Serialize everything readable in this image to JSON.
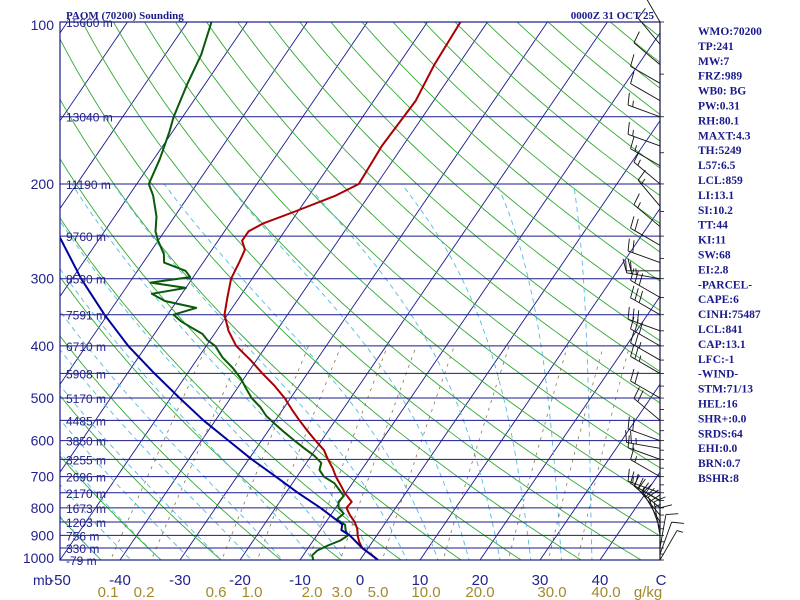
{
  "header": {
    "station": "PAOM (70200) Sounding",
    "time": "0000Z 31 OCT 25"
  },
  "indices": [
    "WMO:70200",
    "TP:241",
    "MW:7",
    "FRZ:989",
    "WB0: BG",
    "PW:0.31",
    "RH:80.1",
    "MAXT:4.3",
    "TH:5249",
    "L57:6.5",
    "LCL:859",
    "LI:13.1",
    "SI:10.2",
    "TT:44",
    "KI:11",
    "SW:68",
    "EI:2.8",
    "-PARCEL-",
    "CAPE:6",
    "CINH:75487",
    "LCL:841",
    "CAP:13.1",
    "LFC:-1",
    "-WIND-",
    "STM:71/13",
    "HEL:16",
    "SHR+:0.0",
    "SRDS:64",
    "EHI:0.0",
    "BRN:0.7",
    "BSHR:8"
  ],
  "chart_data": {
    "type": "line",
    "title": "PAOM (70200) Sounding",
    "subtitle": "0000Z 31 OCT 25",
    "x_axis_unit": "C",
    "y_axis_unit": "mb",
    "xlim": [
      -50,
      50
    ],
    "ylim": [
      1000,
      100
    ],
    "pressure_ticks": [
      100,
      200,
      300,
      400,
      500,
      600,
      700,
      800,
      900,
      1000
    ],
    "temperature_ticks": [
      -50,
      -40,
      -30,
      -20,
      -10,
      0,
      10,
      20,
      30,
      40
    ],
    "mixing_ratio_labels": [
      {
        "label": "0.1",
        "at_temp": -42
      },
      {
        "label": "0.2",
        "at_temp": -36
      },
      {
        "label": "0.6",
        "at_temp": -24
      },
      {
        "label": "1.0",
        "at_temp": -18
      },
      {
        "label": "2.0",
        "at_temp": -8
      },
      {
        "label": "3.0",
        "at_temp": -3
      },
      {
        "label": "5.0",
        "at_temp": 3
      },
      {
        "label": "10.0",
        "at_temp": 11
      },
      {
        "label": "20.0",
        "at_temp": 20
      },
      {
        "label": "30.0",
        "at_temp": 32
      },
      {
        "label": "40.0",
        "at_temp": 41
      },
      {
        "label": "g/kg",
        "at_temp": 48
      }
    ],
    "height_levels": [
      {
        "p": 100,
        "label": "15660 m"
      },
      {
        "p": 150,
        "label": "13040 m"
      },
      {
        "p": 200,
        "label": "11190 m"
      },
      {
        "p": 250,
        "label": "9760 m"
      },
      {
        "p": 300,
        "label": "8590 m"
      },
      {
        "p": 350,
        "label": "7591 m"
      },
      {
        "p": 400,
        "label": "6710 m"
      },
      {
        "p": 450,
        "label": "5908 m"
      },
      {
        "p": 500,
        "label": "5170 m"
      },
      {
        "p": 550,
        "label": "4485 m"
      },
      {
        "p": 600,
        "label": "3850 m"
      },
      {
        "p": 650,
        "label": "3255 m"
      },
      {
        "p": 700,
        "label": "2696 m"
      },
      {
        "p": 750,
        "label": "2170 m"
      },
      {
        "p": 800,
        "label": "1673 m"
      },
      {
        "p": 850,
        "label": "1203 m"
      },
      {
        "p": 900,
        "label": "756 m"
      },
      {
        "p": 950,
        "label": "330 m"
      },
      {
        "p": 1000,
        "label": "-79 m"
      }
    ],
    "series": [
      {
        "name": "Temperature",
        "color": "#aa0000",
        "points": [
          {
            "p": 1000,
            "t": 3.0
          },
          {
            "p": 980,
            "t": 1.5
          },
          {
            "p": 950,
            "t": -1.0
          },
          {
            "p": 925,
            "t": -2.2
          },
          {
            "p": 900,
            "t": -3.2
          },
          {
            "p": 875,
            "t": -4.0
          },
          {
            "p": 850,
            "t": -5.2
          },
          {
            "p": 825,
            "t": -6.8
          },
          {
            "p": 800,
            "t": -8.2
          },
          {
            "p": 780,
            "t": -8.0
          },
          {
            "p": 750,
            "t": -10.2
          },
          {
            "p": 725,
            "t": -11.8
          },
          {
            "p": 700,
            "t": -13.5
          },
          {
            "p": 675,
            "t": -15.0
          },
          {
            "p": 650,
            "t": -16.8
          },
          {
            "p": 625,
            "t": -18.5
          },
          {
            "p": 600,
            "t": -21.0
          },
          {
            "p": 575,
            "t": -23.5
          },
          {
            "p": 550,
            "t": -26.0
          },
          {
            "p": 525,
            "t": -28.5
          },
          {
            "p": 500,
            "t": -31.0
          },
          {
            "p": 475,
            "t": -34.0
          },
          {
            "p": 450,
            "t": -37.5
          },
          {
            "p": 425,
            "t": -41.0
          },
          {
            "p": 400,
            "t": -45.0
          },
          {
            "p": 375,
            "t": -48.0
          },
          {
            "p": 350,
            "t": -50.5
          },
          {
            "p": 325,
            "t": -52.0
          },
          {
            "p": 300,
            "t": -53.5
          },
          {
            "p": 280,
            "t": -54.0
          },
          {
            "p": 265,
            "t": -54.5
          },
          {
            "p": 255,
            "t": -56.0
          },
          {
            "p": 245,
            "t": -56.0
          },
          {
            "p": 237,
            "t": -54.5
          },
          {
            "p": 225,
            "t": -50.5
          },
          {
            "p": 210,
            "t": -45.5
          },
          {
            "p": 200,
            "t": -43.0
          },
          {
            "p": 170,
            "t": -43.5
          },
          {
            "p": 140,
            "t": -43.0
          },
          {
            "p": 120,
            "t": -44.0
          },
          {
            "p": 100,
            "t": -44.5
          }
        ]
      },
      {
        "name": "Dewpoint",
        "color": "#0a5a0a",
        "points": [
          {
            "p": 1000,
            "t": -7.8
          },
          {
            "p": 980,
            "t": -8.5
          },
          {
            "p": 960,
            "t": -8.2
          },
          {
            "p": 940,
            "t": -7.0
          },
          {
            "p": 920,
            "t": -5.5
          },
          {
            "p": 900,
            "t": -4.8
          },
          {
            "p": 880,
            "t": -5.8
          },
          {
            "p": 860,
            "t": -6.5
          },
          {
            "p": 840,
            "t": -8.5
          },
          {
            "p": 820,
            "t": -8.0
          },
          {
            "p": 800,
            "t": -9.5
          },
          {
            "p": 780,
            "t": -10.2
          },
          {
            "p": 760,
            "t": -10.0
          },
          {
            "p": 740,
            "t": -11.5
          },
          {
            "p": 720,
            "t": -13.0
          },
          {
            "p": 700,
            "t": -15.5
          },
          {
            "p": 680,
            "t": -17.0
          },
          {
            "p": 660,
            "t": -17.5
          },
          {
            "p": 640,
            "t": -19.5
          },
          {
            "p": 620,
            "t": -22.0
          },
          {
            "p": 600,
            "t": -24.5
          },
          {
            "p": 580,
            "t": -27.0
          },
          {
            "p": 560,
            "t": -29.5
          },
          {
            "p": 540,
            "t": -32.0
          },
          {
            "p": 520,
            "t": -34.0
          },
          {
            "p": 500,
            "t": -36.5
          },
          {
            "p": 480,
            "t": -38.5
          },
          {
            "p": 460,
            "t": -40.5
          },
          {
            "p": 440,
            "t": -43.0
          },
          {
            "p": 420,
            "t": -46.0
          },
          {
            "p": 400,
            "t": -48.5
          },
          {
            "p": 390,
            "t": -50.5
          },
          {
            "p": 380,
            "t": -52.0
          },
          {
            "p": 370,
            "t": -54.5
          },
          {
            "p": 360,
            "t": -57.0
          },
          {
            "p": 350,
            "t": -59.0
          },
          {
            "p": 340,
            "t": -56.0
          },
          {
            "p": 330,
            "t": -62.0
          },
          {
            "p": 320,
            "t": -65.0
          },
          {
            "p": 312,
            "t": -60.0
          },
          {
            "p": 305,
            "t": -66.5
          },
          {
            "p": 298,
            "t": -60.5
          },
          {
            "p": 290,
            "t": -62.0
          },
          {
            "p": 280,
            "t": -66.5
          },
          {
            "p": 270,
            "t": -67.5
          },
          {
            "p": 255,
            "t": -70.0
          },
          {
            "p": 245,
            "t": -71.5
          },
          {
            "p": 230,
            "t": -73.0
          },
          {
            "p": 210,
            "t": -76.0
          },
          {
            "p": 200,
            "t": -78.0
          },
          {
            "p": 180,
            "t": -79.0
          },
          {
            "p": 160,
            "t": -80.5
          },
          {
            "p": 150,
            "t": -81.5
          },
          {
            "p": 130,
            "t": -83.0
          },
          {
            "p": 115,
            "t": -84.0
          },
          {
            "p": 100,
            "t": -86.0
          }
        ]
      },
      {
        "name": "Parcel",
        "color": "#0000a0",
        "points": [
          {
            "p": 1000,
            "t": 3.0
          },
          {
            "p": 950,
            "t": -1.0
          },
          {
            "p": 900,
            "t": -4.5
          },
          {
            "p": 880,
            "t": -6.5
          },
          {
            "p": 859,
            "t": -7.0
          },
          {
            "p": 850,
            "t": -7.8
          },
          {
            "p": 800,
            "t": -12.5
          },
          {
            "p": 750,
            "t": -18.0
          },
          {
            "p": 700,
            "t": -23.5
          },
          {
            "p": 650,
            "t": -29.5
          },
          {
            "p": 600,
            "t": -35.5
          },
          {
            "p": 550,
            "t": -42.0
          },
          {
            "p": 500,
            "t": -48.5
          },
          {
            "p": 450,
            "t": -55.5
          },
          {
            "p": 400,
            "t": -63.0
          },
          {
            "p": 350,
            "t": -70.5
          },
          {
            "p": 300,
            "t": -78.5
          },
          {
            "p": 250,
            "t": -87.0
          },
          {
            "p": 200,
            "t": -96.0
          },
          {
            "p": 150,
            "t": -106.0
          },
          {
            "p": 125,
            "t": -111.5
          },
          {
            "p": 100,
            "t": -117.5
          }
        ]
      }
    ],
    "wind_barbs": [
      {
        "p": 1000,
        "dir": 30,
        "spd": 5
      },
      {
        "p": 975,
        "dir": 20,
        "spd": 10
      },
      {
        "p": 950,
        "dir": 10,
        "spd": 10
      },
      {
        "p": 925,
        "dir": 0,
        "spd": 10
      },
      {
        "p": 900,
        "dir": 350,
        "spd": 15
      },
      {
        "p": 875,
        "dir": 340,
        "spd": 20
      },
      {
        "p": 850,
        "dir": 330,
        "spd": 20
      },
      {
        "p": 825,
        "dir": 320,
        "spd": 20
      },
      {
        "p": 800,
        "dir": 310,
        "spd": 25
      },
      {
        "p": 775,
        "dir": 300,
        "spd": 20
      },
      {
        "p": 750,
        "dir": 290,
        "spd": 15
      },
      {
        "p": 700,
        "dir": 300,
        "spd": 15
      },
      {
        "p": 650,
        "dir": 290,
        "spd": 15
      },
      {
        "p": 620,
        "dir": 280,
        "spd": 25
      },
      {
        "p": 600,
        "dir": 290,
        "spd": 20
      },
      {
        "p": 550,
        "dir": 310,
        "spd": 20
      },
      {
        "p": 500,
        "dir": 300,
        "spd": 20
      },
      {
        "p": 450,
        "dir": 300,
        "spd": 25
      },
      {
        "p": 425,
        "dir": 300,
        "spd": 25
      },
      {
        "p": 400,
        "dir": 300,
        "spd": 30
      },
      {
        "p": 375,
        "dir": 290,
        "spd": 30
      },
      {
        "p": 350,
        "dir": 300,
        "spd": 30
      },
      {
        "p": 325,
        "dir": 300,
        "spd": 30
      },
      {
        "p": 300,
        "dir": 280,
        "spd": 25
      },
      {
        "p": 290,
        "dir": 270,
        "spd": 20
      },
      {
        "p": 280,
        "dir": 290,
        "spd": 20
      },
      {
        "p": 260,
        "dir": 300,
        "spd": 20
      },
      {
        "p": 240,
        "dir": 310,
        "spd": 15
      },
      {
        "p": 220,
        "dir": 320,
        "spd": 15
      },
      {
        "p": 200,
        "dir": 310,
        "spd": 15
      },
      {
        "p": 185,
        "dir": 300,
        "spd": 15
      },
      {
        "p": 170,
        "dir": 290,
        "spd": 15
      },
      {
        "p": 150,
        "dir": 290,
        "spd": 15
      },
      {
        "p": 140,
        "dir": 300,
        "spd": 10
      },
      {
        "p": 130,
        "dir": 300,
        "spd": 10
      },
      {
        "p": 120,
        "dir": 310,
        "spd": 10
      },
      {
        "p": 110,
        "dir": 320,
        "spd": 10
      },
      {
        "p": 100,
        "dir": 330,
        "spd": 10
      }
    ],
    "colors": {
      "isobar": "#1a1a8c",
      "isotherm": "#1a1a8c",
      "dry_adiabat": "#33aa33",
      "moist_adiabat": "#55bbdd",
      "mixing_ratio": "#8a7a50",
      "text": "#22228c"
    }
  }
}
